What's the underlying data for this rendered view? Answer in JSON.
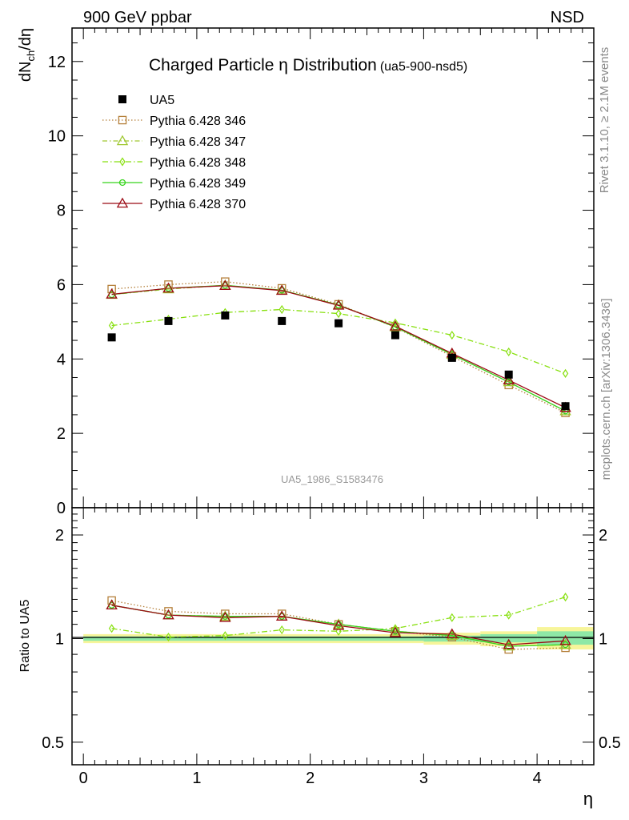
{
  "header": {
    "left": "900 GeV ppbar",
    "right": "NSD"
  },
  "side_labels": {
    "rivet": "Rivet 3.1.10, ≥ 2.1M events",
    "mcplots": "mcplots.cern.ch [arXiv:1306.3436]"
  },
  "chart_data": {
    "type": "scatter",
    "title": "Charged Particle η Distribution",
    "title_tag": "(ua5-900-nsd5)",
    "watermark": "UA5_1986_S1583476",
    "ylabel": "dN_ch/dη",
    "xlabel": "η",
    "xlim": [
      -0.1,
      4.5
    ],
    "main": {
      "ylim": [
        0,
        12.9
      ],
      "yticks": [
        0,
        2,
        4,
        6,
        8,
        10,
        12
      ],
      "yticklabels": [
        "0",
        "2",
        "4",
        "6",
        "8",
        "10",
        "12"
      ]
    },
    "ratio": {
      "ylabel": "Ratio to UA5",
      "ylim": [
        0.43,
        2.4
      ],
      "scale": "log",
      "yticks": [
        0.5,
        1,
        2
      ],
      "yticklabels": [
        "0.5",
        "1",
        "2"
      ],
      "band_outer": [
        {
          "x0": 0,
          "x1": 3,
          "lo": 0.97,
          "hi": 1.03
        },
        {
          "x0": 3,
          "x1": 3.5,
          "lo": 0.96,
          "hi": 1.04
        },
        {
          "x0": 3.5,
          "x1": 4,
          "lo": 0.95,
          "hi": 1.05
        },
        {
          "x0": 4,
          "x1": 4.5,
          "lo": 0.93,
          "hi": 1.08
        }
      ],
      "band_inner": [
        {
          "x0": 0,
          "x1": 3,
          "lo": 0.985,
          "hi": 1.015
        },
        {
          "x0": 3,
          "x1": 3.5,
          "lo": 0.98,
          "hi": 1.02
        },
        {
          "x0": 3.5,
          "x1": 4,
          "lo": 0.975,
          "hi": 1.03
        },
        {
          "x0": 4,
          "x1": 4.5,
          "lo": 0.96,
          "hi": 1.05
        }
      ]
    },
    "xticks": [
      0,
      1,
      2,
      3,
      4
    ],
    "xticklabels": [
      "0",
      "1",
      "2",
      "3",
      "4"
    ],
    "x": [
      0.25,
      0.75,
      1.25,
      1.75,
      2.25,
      2.75,
      3.25,
      3.75,
      4.25
    ],
    "data": {
      "name": "UA5",
      "values": [
        4.58,
        5.02,
        5.17,
        5.02,
        4.96,
        4.64,
        4.03,
        3.58,
        2.73
      ]
    },
    "series": [
      {
        "name": "Pythia 6.428 346",
        "color": "#b5803b",
        "marker": "square",
        "dash": "1.5,2.5",
        "values": [
          5.88,
          6.0,
          6.08,
          5.9,
          5.47,
          4.85,
          4.07,
          3.3,
          2.55
        ],
        "ratio": [
          1.29,
          1.2,
          1.18,
          1.18,
          1.1,
          1.05,
          1.01,
          0.93,
          0.94
        ]
      },
      {
        "name": "Pythia 6.428 347",
        "color": "#a0c832",
        "marker": "triangle",
        "dash": "6,3,1.5,3",
        "values": [
          5.73,
          5.88,
          5.98,
          5.85,
          5.45,
          4.86,
          4.12,
          3.38,
          2.6
        ],
        "ratio": [
          1.25,
          1.17,
          1.16,
          1.16,
          1.1,
          1.05,
          1.02,
          0.95,
          0.96
        ]
      },
      {
        "name": "Pythia 6.428 348",
        "color": "#88e010",
        "marker": "diamond",
        "dash": "7,3,1.5,3",
        "values": [
          4.9,
          5.07,
          5.25,
          5.33,
          5.22,
          4.97,
          4.64,
          4.19,
          3.61
        ],
        "ratio": [
          1.07,
          1.01,
          1.02,
          1.06,
          1.05,
          1.07,
          1.15,
          1.17,
          1.32
        ]
      },
      {
        "name": "Pythia 6.428 349",
        "color": "#36d41c",
        "marker": "circle",
        "dash": "",
        "values": [
          5.73,
          5.9,
          5.98,
          5.85,
          5.45,
          4.86,
          4.12,
          3.38,
          2.6
        ],
        "ratio": [
          1.25,
          1.17,
          1.16,
          1.16,
          1.1,
          1.05,
          1.02,
          0.95,
          0.96
        ]
      },
      {
        "name": "Pythia 6.428 370",
        "color": "#9b0a14",
        "marker": "triangle",
        "dash": "",
        "values": [
          5.74,
          5.9,
          5.97,
          5.84,
          5.44,
          4.88,
          4.15,
          3.43,
          2.69
        ],
        "ratio": [
          1.25,
          1.17,
          1.15,
          1.16,
          1.09,
          1.04,
          1.03,
          0.96,
          0.985
        ]
      }
    ]
  }
}
